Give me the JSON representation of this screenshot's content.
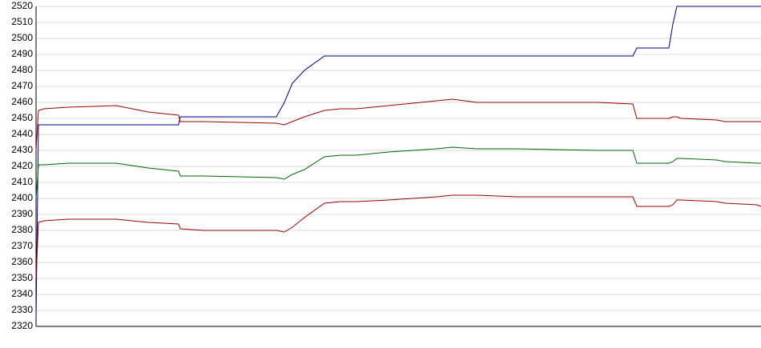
{
  "chart_data": {
    "type": "line",
    "x": [
      0,
      3,
      10,
      40,
      100,
      140,
      178,
      180,
      210,
      300,
      310,
      320,
      335,
      360,
      380,
      400,
      440,
      500,
      520,
      550,
      600,
      700,
      745,
      750,
      790,
      795,
      800,
      805,
      850,
      860,
      900,
      905
    ],
    "xlim": [
      0,
      905
    ],
    "ylim": [
      2320,
      2520
    ],
    "yticks": [
      2320,
      2330,
      2340,
      2350,
      2360,
      2370,
      2380,
      2390,
      2400,
      2410,
      2420,
      2430,
      2440,
      2450,
      2460,
      2470,
      2480,
      2490,
      2500,
      2510,
      2520
    ],
    "grid": true,
    "series": [
      {
        "color": "#000080",
        "values": [
          2325,
          2446,
          2446,
          2446,
          2446,
          2446,
          2446,
          2451,
          2451,
          2451,
          2460,
          2472,
          2480,
          2489,
          2489,
          2489,
          2489,
          2489,
          2489,
          2489,
          2489,
          2489,
          2489,
          2494,
          2494,
          2509,
          2520,
          2520,
          2520,
          2520,
          2520,
          2520
        ]
      },
      {
        "color": "#990000",
        "values": [
          2430,
          2455,
          2456,
          2457,
          2458,
          2454,
          2452,
          2448,
          2448,
          2447,
          2446,
          2448,
          2451,
          2455,
          2456,
          2456,
          2458,
          2461,
          2462,
          2460,
          2460,
          2460,
          2459,
          2450,
          2450,
          2451,
          2451,
          2450,
          2449,
          2448,
          2448,
          2448
        ]
      },
      {
        "color": "#006600",
        "values": [
          2400,
          2421,
          2421,
          2422,
          2422,
          2419,
          2417,
          2414,
          2414,
          2413,
          2412,
          2415,
          2418,
          2426,
          2427,
          2427,
          2429,
          2431,
          2432,
          2431,
          2431,
          2430,
          2430,
          2422,
          2422,
          2423,
          2425,
          2425,
          2424,
          2423,
          2422,
          2422
        ]
      },
      {
        "color": "#990000",
        "values": [
          2350,
          2385,
          2386,
          2387,
          2387,
          2385,
          2384,
          2381,
          2380,
          2380,
          2379,
          2382,
          2388,
          2397,
          2398,
          2398,
          2399,
          2401,
          2402,
          2402,
          2401,
          2401,
          2401,
          2395,
          2395,
          2396,
          2399,
          2399,
          2398,
          2397,
          2396,
          2395
        ]
      }
    ]
  }
}
